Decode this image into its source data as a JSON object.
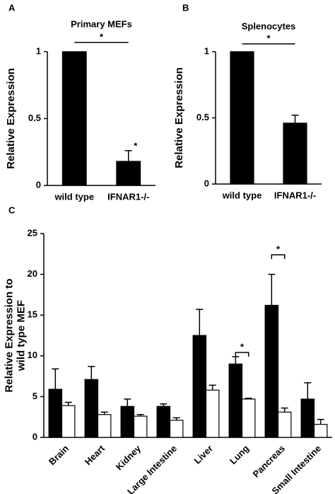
{
  "chart_data": [
    {
      "type": "bar",
      "panel_label": "A",
      "title": "Primary MEFs",
      "y_label": [
        "Relative Expression"
      ],
      "categories": [
        "wild type",
        "IFNAR1-/-"
      ],
      "series": [
        {
          "color": "#000000",
          "values": [
            1,
            0.18
          ],
          "errors": [
            null,
            0.08
          ]
        }
      ],
      "annotations": [
        "*",
        "*"
      ],
      "ylim": [
        0,
        1
      ],
      "yticks": [
        0,
        0.5,
        1
      ]
    },
    {
      "type": "bar",
      "panel_label": "B",
      "title": "Splenocytes",
      "y_label": [
        "Relative Expression"
      ],
      "categories": [
        "wild type",
        "IFNAR1-/-"
      ],
      "series": [
        {
          "color": "#000000",
          "values": [
            1,
            0.46
          ],
          "errors": [
            null,
            0.06
          ]
        }
      ],
      "annotations": [
        "*"
      ],
      "ylim": [
        0,
        1
      ],
      "yticks": [
        0,
        0.5,
        1
      ]
    },
    {
      "type": "grouped-bar",
      "panel_label": "C",
      "y_label": [
        "Relative Expression to",
        "wild type MEF"
      ],
      "categories": [
        "Brain",
        "Heart",
        "Kidney",
        "Large Intestine",
        "Liver",
        "Lung",
        "Pancreas",
        "Small Intestine"
      ],
      "series": [
        {
          "color": "#000000",
          "values": [
            5.9,
            7.1,
            3.8,
            3.8,
            12.5,
            9.0,
            16.2,
            4.7
          ],
          "errors": [
            2.5,
            1.6,
            0.9,
            0.3,
            3.2,
            0.9,
            3.8,
            2.0
          ]
        },
        {
          "color": "#ffffff",
          "values": [
            3.9,
            2.8,
            2.6,
            2.1,
            5.8,
            4.7,
            3.1,
            1.6
          ],
          "errors": [
            0.4,
            0.3,
            0.2,
            0.3,
            0.6,
            0.1,
            0.5,
            0.6
          ]
        }
      ],
      "annotations": [
        "*",
        "*"
      ],
      "ylim": [
        0,
        25
      ],
      "yticks": [
        0,
        5,
        10,
        15,
        20,
        25
      ]
    }
  ]
}
